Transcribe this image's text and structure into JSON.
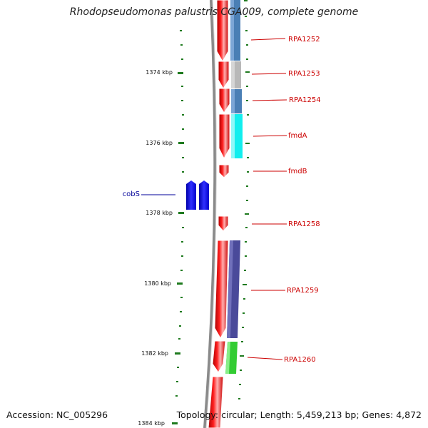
{
  "title": "Rhodopseudomonas palustris CGA009, complete genome",
  "footer": {
    "accession": "Accession: NC_005296",
    "topology": "Topology: circular; Length: 5,459,213 bp; Genes: 4,872"
  },
  "kbp_labels": [
    "1374 kbp",
    "1376 kbp",
    "1378 kbp",
    "1380 kbp",
    "1382 kbp",
    "1384 kbp"
  ],
  "colors": {
    "backbone": "#8a8a8a",
    "tick": "#1e7a1e",
    "forward_gene": "#ee1111",
    "label_right": "#cc0000",
    "label_left": "#000099",
    "cobS": "#0000ee"
  },
  "genes_right": [
    {
      "name": "RPA1252",
      "color": "#4a7fb5"
    },
    {
      "name": "RPA1253",
      "color": "#b8b8b8"
    },
    {
      "name": "RPA1254",
      "color": "#4a7fb5"
    },
    {
      "name": "fmdA",
      "color": "#11eeee"
    },
    {
      "name": "fmdB",
      "color": null
    },
    {
      "name": "RPA1258",
      "color": null
    },
    {
      "name": "RPA1259",
      "color": "#4a4a9a"
    },
    {
      "name": "RPA1260",
      "color": "#33cc33"
    }
  ],
  "genes_left": [
    {
      "name": "cobS"
    }
  ]
}
